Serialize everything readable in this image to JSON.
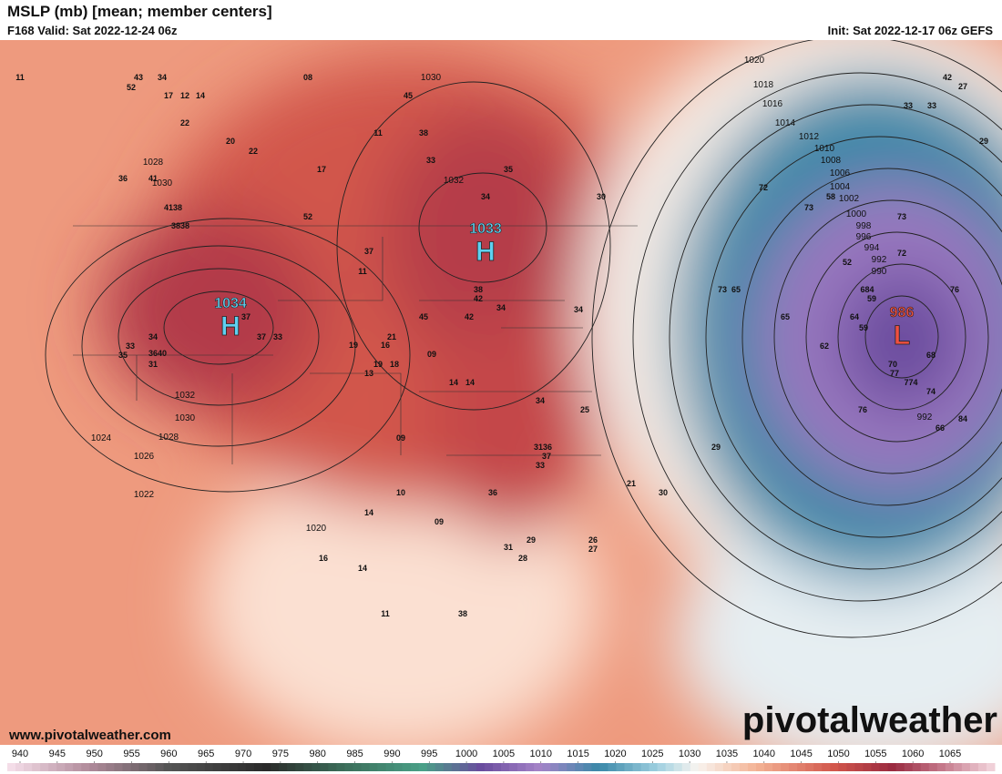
{
  "header": {
    "title": "MSLP (mb) [mean; member centers]",
    "valid": "F168 Valid: Sat 2022-12-24 06z",
    "init": "Init: Sat 2022-12-17 06z GEFS"
  },
  "centers": [
    {
      "value": "1034",
      "letter": "H"
    },
    {
      "value": "1033",
      "letter": "H"
    },
    {
      "value": "986",
      "letter": "L"
    }
  ],
  "isobar_labels": [
    "1030",
    "1020",
    "1018",
    "1016",
    "1014",
    "1012",
    "1010",
    "1008",
    "1006",
    "1004",
    "1002",
    "1000",
    "998",
    "996",
    "994",
    "992",
    "990",
    "992",
    "1032",
    "1030",
    "1028",
    "1026",
    "1024",
    "1022",
    "1020",
    "1028",
    "1030",
    "1032"
  ],
  "member_labels": [
    "11",
    "43",
    "34",
    "52",
    "17",
    "12",
    "14",
    "22",
    "20",
    "22",
    "36",
    "41",
    "4138",
    "3838",
    "37",
    "37",
    "33",
    "34",
    "33",
    "35",
    "3640",
    "31",
    "08",
    "45",
    "38",
    "11",
    "33",
    "35",
    "17",
    "34",
    "30",
    "52",
    "37",
    "11",
    "38",
    "42",
    "34",
    "34",
    "45",
    "42",
    "21",
    "19",
    "16",
    "09",
    "19",
    "18",
    "13",
    "14",
    "14",
    "34",
    "25",
    "09",
    "3136",
    "37",
    "33",
    "29",
    "36",
    "10",
    "21",
    "30",
    "14",
    "09",
    "16",
    "31",
    "29",
    "28",
    "26",
    "27",
    "14",
    "11",
    "38",
    "42",
    "27",
    "33",
    "33",
    "29",
    "72",
    "73",
    "58",
    "73",
    "72",
    "52",
    "73",
    "65",
    "684",
    "59",
    "76",
    "65",
    "64",
    "59",
    "62",
    "70",
    "77",
    "774",
    "74",
    "68",
    "76",
    "84",
    "66"
  ],
  "watermark": "pivotalweather",
  "url": "www.pivotalweather.com",
  "colorbar": {
    "ticks": [
      940,
      945,
      950,
      955,
      960,
      965,
      970,
      975,
      980,
      985,
      990,
      995,
      1000,
      1005,
      1010,
      1015,
      1020,
      1025,
      1030,
      1035,
      1040,
      1045,
      1050,
      1055,
      1060,
      1065
    ]
  }
}
